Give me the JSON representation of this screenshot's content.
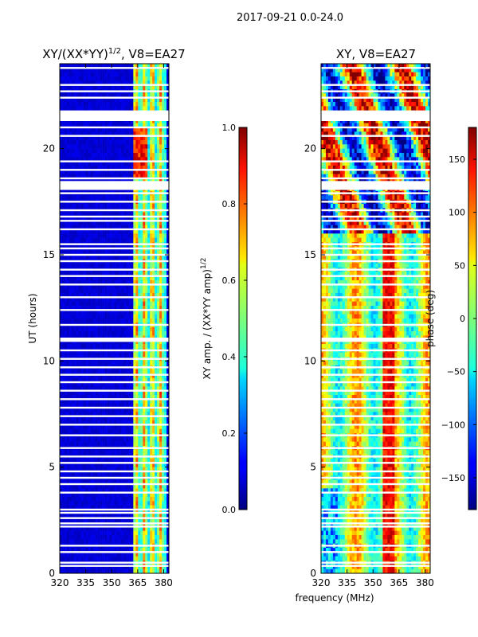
{
  "suptitle": "2017-09-21 0.0-24.0",
  "xlabel": "frequency (MHz)",
  "colors": {
    "background": "#ffffff",
    "axis": "#000000",
    "flagged": "#ffffff"
  },
  "chart_data": [
    {
      "type": "heatmap",
      "panel": "left",
      "title_base": "XY/(XX*YY)",
      "title_exp": "1/2",
      "title_suffix": ", V8=EA27",
      "xlabel": "",
      "ylabel": "UT (hours)",
      "xlim": [
        320,
        383
      ],
      "ylim": [
        0,
        24
      ],
      "xticks": [
        320,
        335,
        350,
        365,
        380
      ],
      "yticks": [
        0,
        5,
        10,
        15,
        20
      ],
      "description": "amplitude waterfall; low (~0.05) across band except bright channel group 363-381 MHz",
      "bright_band": {
        "start": 363,
        "end": 381,
        "peak": 0.9
      },
      "colorbar": {
        "label": "XY amp. / (XX*YY amp)",
        "label_exp": "1/2",
        "range": [
          0.0,
          1.0
        ],
        "ticks": [
          "0.0",
          "0.2",
          "0.4",
          "0.6",
          "0.8",
          "1.0"
        ],
        "tick_values": [
          0,
          0.2,
          0.4,
          0.6,
          0.8,
          1.0
        ]
      }
    },
    {
      "type": "heatmap",
      "panel": "right",
      "title": "XY, V8=EA27",
      "xlabel": "frequency (MHz)",
      "ylabel": "",
      "xlim": [
        320,
        383
      ],
      "ylim": [
        0,
        24
      ],
      "xticks": [
        320,
        335,
        350,
        365,
        380
      ],
      "yticks": [
        0,
        5,
        10,
        15,
        20
      ],
      "description": "phase waterfall, values span -180 to 180 degrees",
      "colorbar": {
        "label": "phase (deg)",
        "range": [
          -180,
          180
        ],
        "ticks": [
          "150",
          "100",
          "50",
          "0",
          "−50",
          "−100",
          "−150"
        ],
        "tick_values": [
          150,
          100,
          50,
          0,
          -50,
          -100,
          -150
        ]
      }
    }
  ],
  "flagged_ut_hours": [
    0.35,
    0.5,
    1.0,
    1.3,
    2.2,
    2.35,
    2.6,
    2.85,
    3.0,
    3.8,
    4.2,
    4.5,
    4.8,
    5.2,
    5.5,
    5.9,
    6.5,
    7.0,
    7.4,
    7.8,
    8.2,
    8.6,
    9.0,
    9.35,
    9.7,
    10.1,
    10.5,
    11.0,
    11.7,
    12.4,
    13.0,
    13.6,
    14.0,
    14.3,
    14.7,
    15.0,
    15.3,
    15.5,
    16.2,
    16.6,
    16.8,
    17.1,
    17.5,
    17.9,
    18.1,
    18.6,
    19.0,
    19.4,
    20.6,
    21.0,
    21.6,
    22.4,
    22.7,
    23.0,
    23.8
  ]
}
